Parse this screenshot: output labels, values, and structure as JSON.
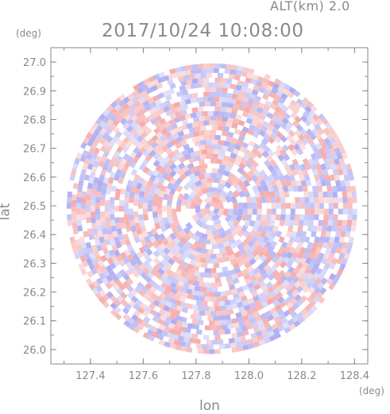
{
  "header": {
    "altitude": "ALT(km) 2.0",
    "datetime": "2017/10/24 10:08:00"
  },
  "chart_data": {
    "type": "heatmap",
    "xlabel": "lon",
    "ylabel": "lat",
    "xunit": "(deg)",
    "yunit": "(deg)",
    "xlim": [
      127.25,
      128.45
    ],
    "ylim": [
      25.95,
      27.05
    ],
    "x_ticks": [
      "127.4",
      "127.6",
      "127.8",
      "128.0",
      "128.2",
      "128.4"
    ],
    "y_ticks": [
      "26.0",
      "26.1",
      "26.2",
      "26.3",
      "26.4",
      "26.5",
      "26.6",
      "26.7",
      "26.8",
      "26.9",
      "27.0"
    ],
    "center": {
      "lon": 127.86,
      "lat": 26.49
    },
    "radius_deg": 0.55,
    "colors": {
      "positive": "#f4a6a6",
      "negative": "#a9a9f2",
      "axis": "#8a8a8a"
    }
  }
}
